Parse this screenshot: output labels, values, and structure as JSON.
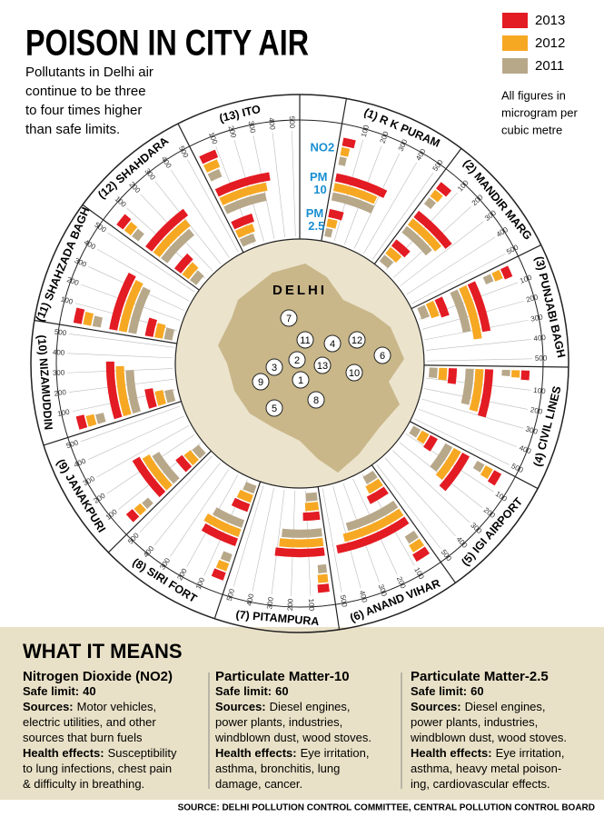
{
  "chart_data": {
    "type": "radial-bar",
    "title": "POISON IN CITY AIR",
    "subtitle": [
      "Pollutants in Delhi air",
      "continue to be three",
      "to four times higher",
      "than safe limits."
    ],
    "units_note": [
      "All figures in",
      "microgram per",
      "cubic metre"
    ],
    "legend": "top-right",
    "categories": [
      "(1) R K PURAM",
      "(2) MANDIR MARG",
      "(3) PUNJABI BAGH",
      "(4) CIVIL LINES",
      "(5) IGI AIRPORT",
      "(6) ANAND VIHAR",
      "(7) PITAMPURA",
      "(8) SIRI FORT",
      "(9) JANAKPURI",
      "(10) NIZAMUDDIN",
      "(11) SHAHZADA BAGH",
      "(12) SHAHDARA",
      "(13) ITO"
    ],
    "groups": [
      "NO2",
      "PM 10",
      "PM 2.5"
    ],
    "group_color": "#1a8fd1",
    "xlim": [
      0,
      500
    ],
    "xticks": [
      100,
      200,
      300,
      400,
      500
    ],
    "grid": true,
    "series": [
      {
        "name": "2013",
        "color": "#e31b23",
        "values": [
          [
            65,
            330,
            110
          ],
          [
            70,
            290,
            140
          ],
          [
            60,
            320,
            150
          ],
          [
            50,
            300,
            120
          ],
          [
            70,
            260,
            110
          ],
          [
            80,
            480,
            160
          ],
          [
            60,
            310,
            130
          ],
          [
            65,
            230,
            130
          ],
          [
            55,
            280,
            120
          ],
          [
            70,
            360,
            150
          ],
          [
            80,
            370,
            140
          ],
          [
            70,
            330,
            150
          ],
          [
            90,
            350,
            170
          ]
        ]
      },
      {
        "name": "2012",
        "color": "#f7a823",
        "values": [
          [
            45,
            290,
            80
          ],
          [
            55,
            260,
            120
          ],
          [
            50,
            360,
            130
          ],
          [
            40,
            280,
            100
          ],
          [
            60,
            220,
            90
          ],
          [
            70,
            420,
            130
          ],
          [
            55,
            290,
            110
          ],
          [
            60,
            250,
            120
          ],
          [
            50,
            260,
            110
          ],
          [
            60,
            330,
            120
          ],
          [
            70,
            350,
            120
          ],
          [
            60,
            300,
            130
          ],
          [
            80,
            320,
            150
          ]
        ]
      },
      {
        "name": "2011",
        "color": "#b8a88a",
        "values": [
          [
            40,
            300,
            60
          ],
          [
            50,
            240,
            100
          ],
          [
            45,
            300,
            110
          ],
          [
            35,
            250,
            90
          ],
          [
            50,
            200,
            80
          ],
          [
            65,
            380,
            110
          ],
          [
            50,
            280,
            100
          ],
          [
            55,
            220,
            100
          ],
          [
            45,
            240,
            100
          ],
          [
            55,
            300,
            110
          ],
          [
            60,
            330,
            100
          ],
          [
            55,
            280,
            110
          ],
          [
            70,
            300,
            130
          ]
        ]
      }
    ]
  },
  "map": {
    "label": "DELHI",
    "markers": [
      "1",
      "2",
      "3",
      "4",
      "5",
      "6",
      "7",
      "8",
      "9",
      "10",
      "11",
      "12",
      "13"
    ]
  },
  "explainer": {
    "title": "WHAT IT MEANS",
    "columns": [
      {
        "title": "Nitrogen Dioxide (NO2)",
        "safe_limit": {
          "label": "Safe limit:",
          "value": 40
        },
        "sources": {
          "label": "Sources:",
          "lines": [
            "Motor vehicles,",
            "electric utilities, and other",
            "sources that burn fuels"
          ]
        },
        "health": {
          "label": "Health effects:",
          "lines": [
            "Susceptibility",
            "to lung infections, chest pain",
            "& difficulty in breathing."
          ]
        }
      },
      {
        "title": "Particulate Matter-10",
        "safe_limit": {
          "label": "Safe limit:",
          "value": 60
        },
        "sources": {
          "label": "Sources:",
          "lines": [
            "Diesel engines,",
            "power plants, industries,",
            "windblown dust, wood stoves."
          ]
        },
        "health": {
          "label": "Health effects:",
          "lines": [
            "Eye irritation,",
            "asthma, bronchitis, lung",
            "damage, cancer."
          ]
        }
      },
      {
        "title": "Particulate Matter-2.5",
        "safe_limit": {
          "label": "Safe limit:",
          "value": 60
        },
        "sources": {
          "label": "Sources:",
          "lines": [
            "Diesel engines,",
            "power plants, industries,",
            "windblown dust, wood stoves."
          ]
        },
        "health": {
          "label": "Health effects:",
          "lines": [
            "Eye irritation,",
            "asthma, heavy metal poison-",
            "ing, cardiovascular effects."
          ]
        }
      }
    ]
  },
  "source": "SOURCE: DELHI POLLUTION CONTROL COMMITTEE, CENTRAL POLLUTION CONTROL BOARD"
}
